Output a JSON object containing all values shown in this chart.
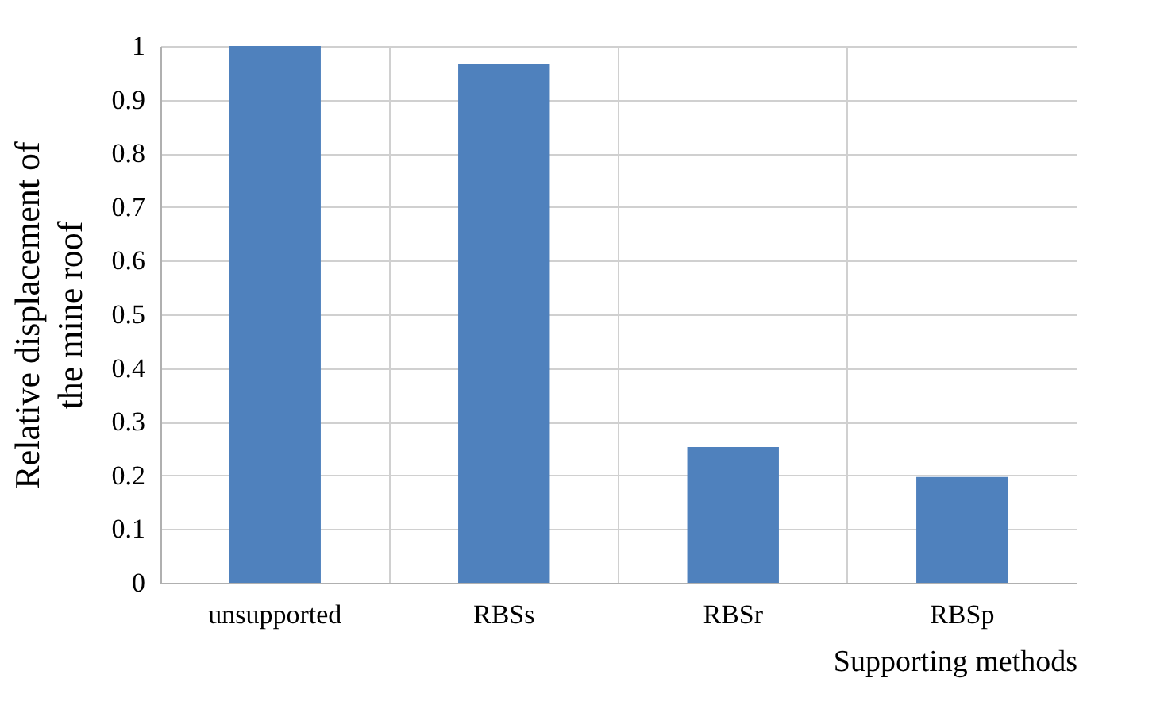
{
  "chart_data": {
    "type": "bar",
    "xlabel": "Supporting methods",
    "ylabel": [
      "Relative displacement of",
      "the mine roof"
    ],
    "categories": [
      "unsupported",
      "RBSs",
      "RBSr",
      "RBSp"
    ],
    "values": [
      1,
      0.966,
      0.253,
      0.197
    ],
    "color": "#4f81bd",
    "ylim": [
      0,
      1
    ],
    "yticks": [
      0,
      0.1,
      0.2,
      0.3,
      0.4,
      0.5,
      0.6,
      0.7,
      0.8,
      0.9,
      1
    ],
    "grid": true
  }
}
